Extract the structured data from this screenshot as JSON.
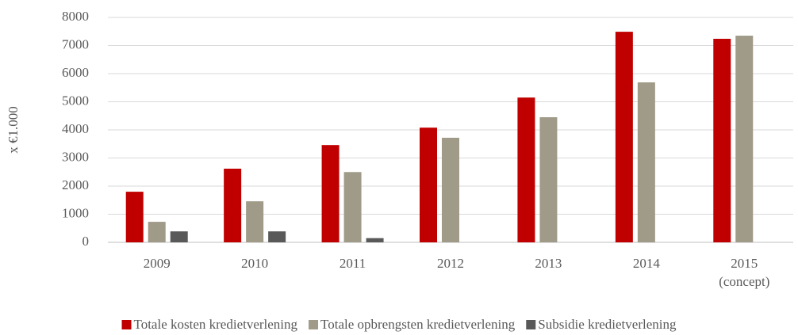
{
  "chart_data": {
    "type": "bar",
    "y_label": "x €1.000",
    "categories": [
      "2009",
      "2010",
      "2011",
      "2012",
      "2013",
      "2014",
      "2015\n(concept)"
    ],
    "series": [
      {
        "name": "Totale kosten kredietverlening",
        "color": "#c00000",
        "values": [
          1800,
          2620,
          3460,
          4080,
          5150,
          7490,
          7240
        ]
      },
      {
        "name": "Totale opbrengsten kredietverlening",
        "color": "#a09a88",
        "values": [
          730,
          1460,
          2500,
          3720,
          4450,
          5690,
          7350
        ]
      },
      {
        "name": "Subsidie kredietverlening",
        "color": "#595959",
        "values": [
          390,
          390,
          150,
          null,
          null,
          null,
          null
        ]
      }
    ],
    "ylim": [
      0,
      8000
    ],
    "yticks": [
      0,
      1000,
      2000,
      3000,
      4000,
      5000,
      6000,
      7000,
      8000
    ],
    "grid": true,
    "legend": "bottom"
  }
}
